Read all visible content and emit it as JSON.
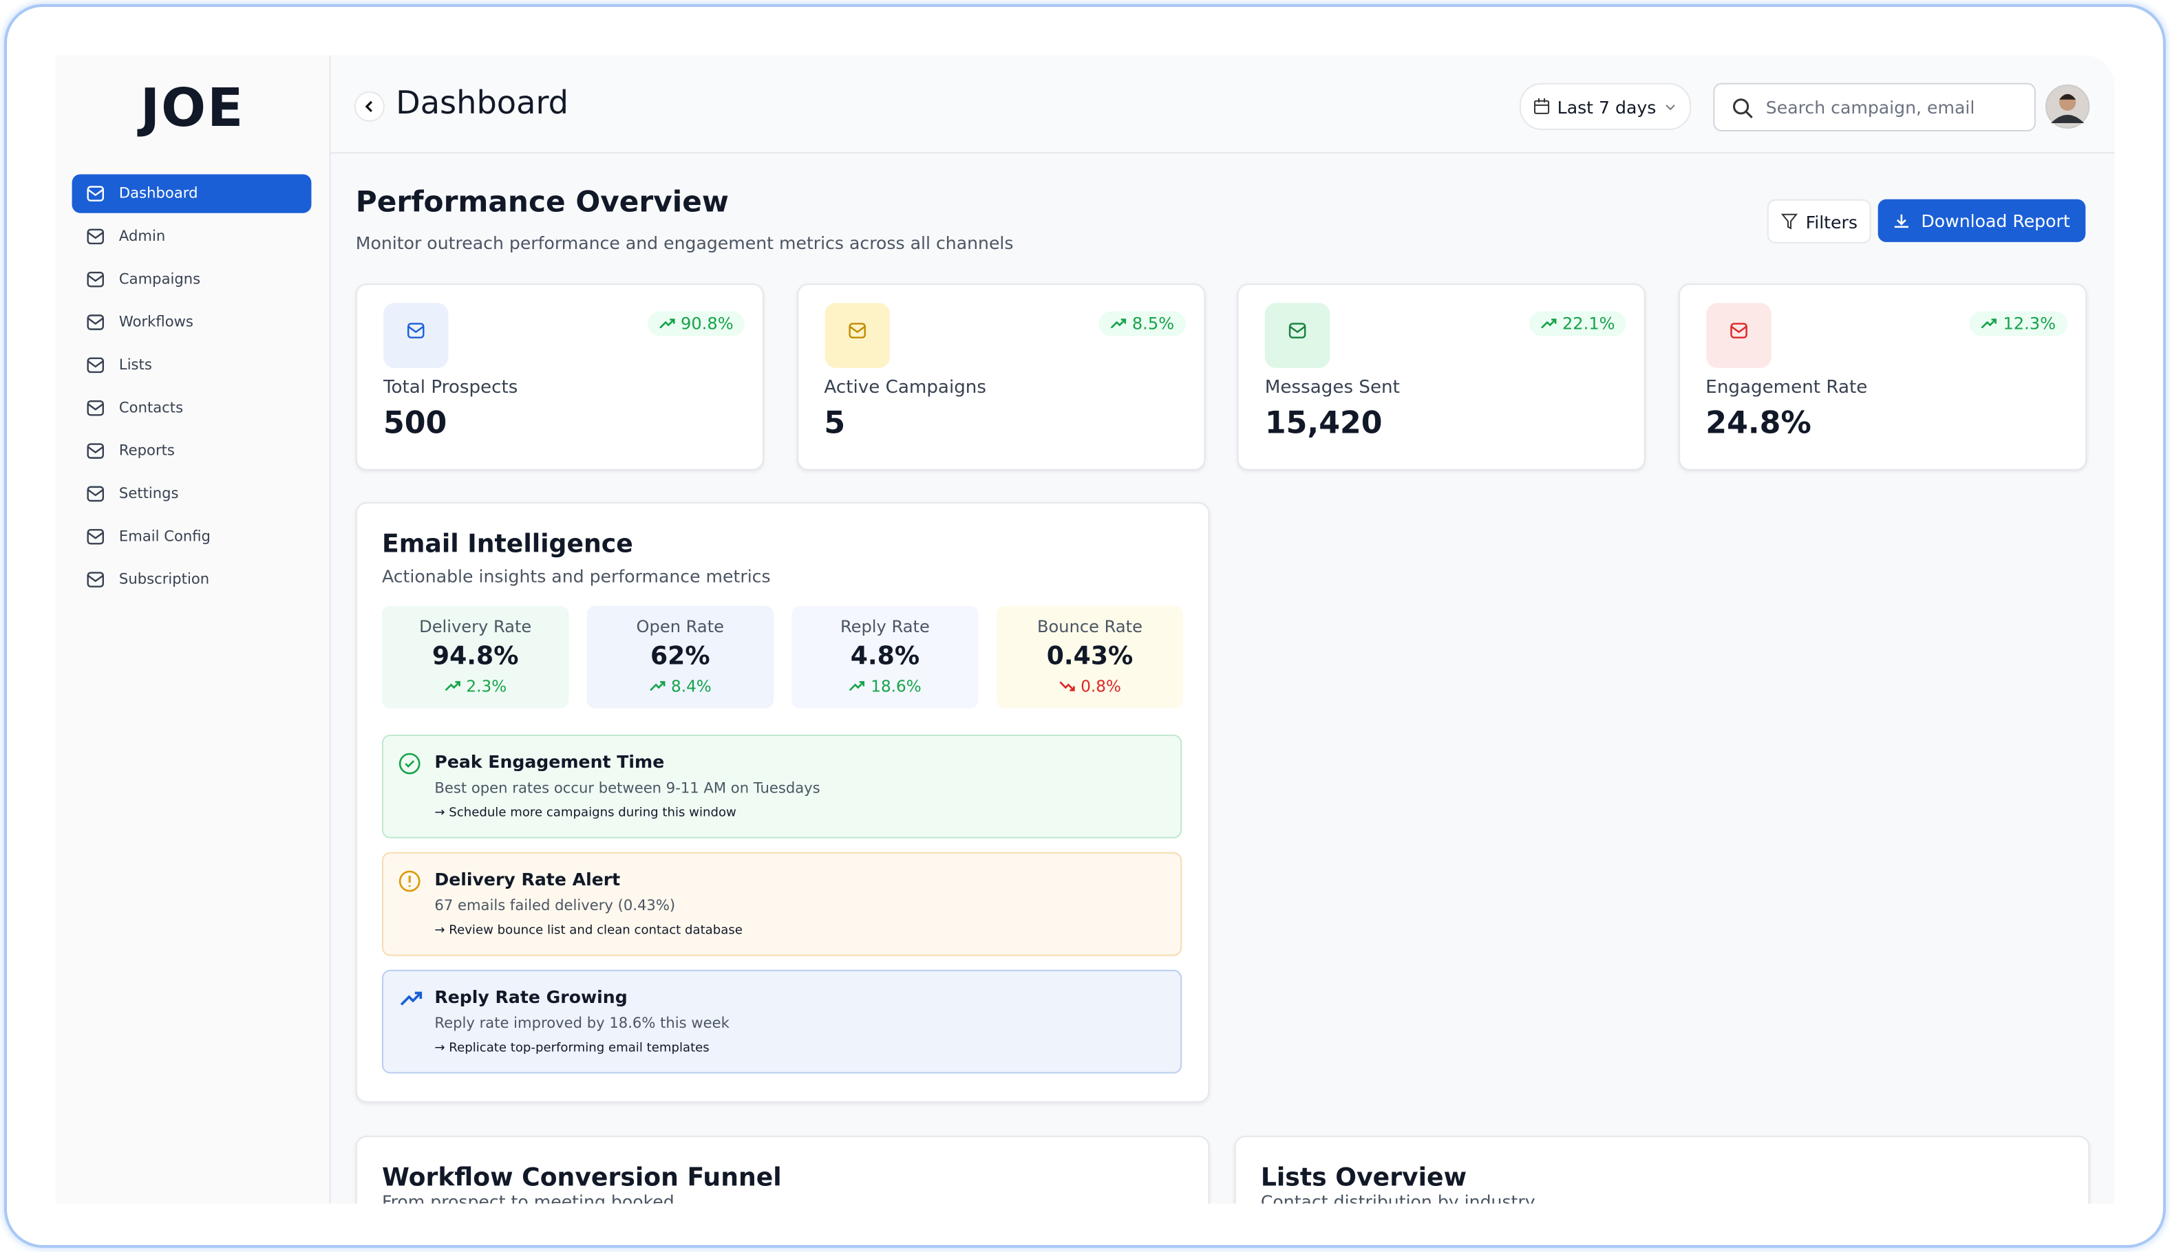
{
  "logo": "JOE",
  "nav": [
    "Dashboard",
    "Admin",
    "Campaigns",
    "Workflows",
    "Lists",
    "Contacts",
    "Reports",
    "Settings",
    "Email Config",
    "Subscription"
  ],
  "header": {
    "title": "Dashboard",
    "date_range": "Last 7 days",
    "search_placeholder": "Search campaign, email"
  },
  "overview": {
    "title": "Performance Overview",
    "subtitle": "Monitor outreach performance and engagement metrics across all channels",
    "filters": "Filters",
    "download": "Download Report"
  },
  "stats": [
    {
      "label": "Total Prospects",
      "value": "500",
      "change": "90.8%"
    },
    {
      "label": "Active Campaigns",
      "value": "5",
      "change": "8.5%"
    },
    {
      "label": "Messages Sent",
      "value": "15,420",
      "change": "22.1%"
    },
    {
      "label": "Engagement Rate",
      "value": "24.8%",
      "change": "12.3%"
    }
  ],
  "email_intelligence": {
    "title": "Email Intelligence",
    "subtitle": "Actionable insights and performance metrics",
    "metrics": [
      {
        "label": "Delivery Rate",
        "value": "94.8%",
        "change": "2.3%",
        "trend": "up"
      },
      {
        "label": "Open Rate",
        "value": "62%",
        "change": "8.4%",
        "trend": "up"
      },
      {
        "label": "Reply Rate",
        "value": "4.8%",
        "change": "18.6%",
        "trend": "up"
      },
      {
        "label": "Bounce Rate",
        "value": "0.43%",
        "change": "0.8%",
        "trend": "down"
      }
    ],
    "insights": [
      {
        "title": "Peak Engagement Time",
        "description": "Best open rates occur between 9-11 AM on Tuesdays",
        "action": "→ Schedule more campaigns during this window"
      },
      {
        "title": "Delivery Rate Alert",
        "description": "67 emails failed delivery (0.43%)",
        "action": "→ Review bounce list and clean contact database"
      },
      {
        "title": "Reply Rate Growing",
        "description": "Reply rate improved by 18.6% this week",
        "action": "→ Replicate top-performing email templates"
      }
    ]
  },
  "sections": [
    {
      "title": "Workflow Conversion Funnel",
      "subtitle": "From prospect to meeting booked"
    },
    {
      "title": "Lists Overview",
      "subtitle": "Contact distribution by industry"
    }
  ]
}
